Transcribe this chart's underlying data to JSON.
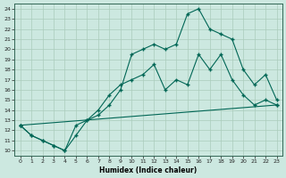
{
  "xlabel": "Humidex (Indice chaleur)",
  "bg_color": "#cce8e0",
  "grid_color": "#aaccbb",
  "line_color": "#006655",
  "marker": "+",
  "xlim": [
    -0.5,
    23.5
  ],
  "ylim": [
    9.5,
    24.5
  ],
  "xticks": [
    0,
    1,
    2,
    3,
    4,
    5,
    6,
    7,
    8,
    9,
    10,
    11,
    12,
    13,
    14,
    15,
    16,
    17,
    18,
    19,
    20,
    21,
    22,
    23
  ],
  "yticks": [
    10,
    11,
    12,
    13,
    14,
    15,
    16,
    17,
    18,
    19,
    20,
    21,
    22,
    23,
    24
  ],
  "line1_x": [
    0,
    1,
    2,
    3,
    4,
    5,
    6,
    7,
    8,
    9,
    10,
    11,
    12,
    13,
    14,
    15,
    16,
    17,
    18,
    19,
    20,
    21,
    22,
    23
  ],
  "line1_y": [
    12.5,
    11.5,
    11.0,
    10.5,
    10.0,
    11.5,
    13.0,
    14.0,
    15.5,
    16.5,
    17.0,
    17.5,
    18.5,
    16.0,
    17.0,
    16.5,
    19.5,
    18.0,
    19.5,
    17.0,
    15.5,
    14.5,
    15.0,
    14.5
  ],
  "line2_x": [
    0,
    1,
    2,
    3,
    4,
    5,
    6,
    7,
    8,
    9,
    10,
    11,
    12,
    13,
    14,
    15,
    16,
    17,
    18,
    19,
    20,
    21,
    22,
    23
  ],
  "line2_y": [
    12.5,
    11.5,
    11.0,
    10.5,
    10.0,
    12.5,
    13.0,
    13.5,
    14.5,
    16.0,
    19.5,
    20.0,
    20.5,
    20.0,
    20.5,
    23.5,
    24.0,
    22.0,
    21.5,
    21.0,
    18.0,
    16.5,
    17.5,
    15.0
  ],
  "line3_x": [
    0,
    23
  ],
  "line3_y": [
    12.5,
    14.5
  ]
}
